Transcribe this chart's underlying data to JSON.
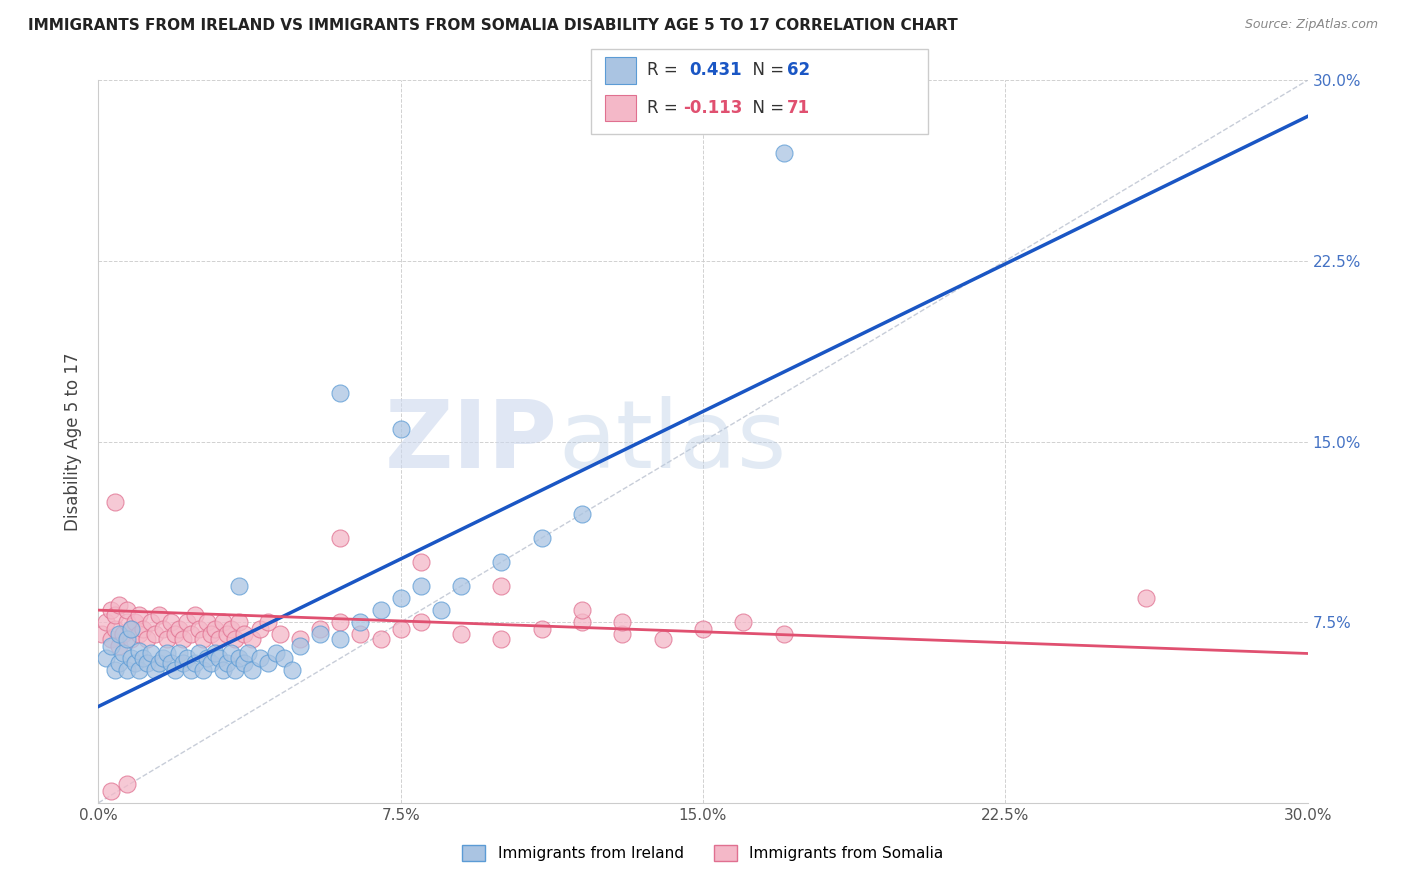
{
  "title": "IMMIGRANTS FROM IRELAND VS IMMIGRANTS FROM SOMALIA DISABILITY AGE 5 TO 17 CORRELATION CHART",
  "source": "Source: ZipAtlas.com",
  "ylabel": "Disability Age 5 to 17",
  "xlim": [
    0.0,
    0.3
  ],
  "ylim": [
    0.0,
    0.3
  ],
  "ireland_color": "#aac4e2",
  "ireland_edge": "#5b9bd5",
  "somalia_color": "#f4b8c8",
  "somalia_edge": "#e07090",
  "ireland_trend_color": "#1a56c4",
  "somalia_trend_color": "#e05070",
  "diagonal_color": "#b0b8c8",
  "R_ireland": 0.431,
  "N_ireland": 62,
  "R_somalia": -0.113,
  "N_somalia": 71,
  "legend_ireland_label": "Immigrants from Ireland",
  "legend_somalia_label": "Immigrants from Somalia",
  "watermark_zip": "ZIP",
  "watermark_atlas": "atlas",
  "ireland_x": [
    0.002,
    0.003,
    0.004,
    0.005,
    0.005,
    0.006,
    0.007,
    0.007,
    0.008,
    0.008,
    0.009,
    0.01,
    0.01,
    0.011,
    0.012,
    0.013,
    0.014,
    0.015,
    0.016,
    0.017,
    0.018,
    0.019,
    0.02,
    0.021,
    0.022,
    0.023,
    0.024,
    0.025,
    0.026,
    0.027,
    0.028,
    0.029,
    0.03,
    0.031,
    0.032,
    0.033,
    0.034,
    0.035,
    0.036,
    0.037,
    0.038,
    0.04,
    0.042,
    0.044,
    0.046,
    0.048,
    0.05,
    0.055,
    0.06,
    0.065,
    0.07,
    0.075,
    0.08,
    0.085,
    0.09,
    0.1,
    0.11,
    0.12,
    0.035,
    0.06,
    0.075,
    0.17
  ],
  "ireland_y": [
    0.06,
    0.065,
    0.055,
    0.07,
    0.058,
    0.062,
    0.055,
    0.068,
    0.06,
    0.072,
    0.058,
    0.063,
    0.055,
    0.06,
    0.058,
    0.062,
    0.055,
    0.058,
    0.06,
    0.062,
    0.058,
    0.055,
    0.062,
    0.058,
    0.06,
    0.055,
    0.058,
    0.062,
    0.055,
    0.06,
    0.058,
    0.062,
    0.06,
    0.055,
    0.058,
    0.062,
    0.055,
    0.06,
    0.058,
    0.062,
    0.055,
    0.06,
    0.058,
    0.062,
    0.06,
    0.055,
    0.065,
    0.07,
    0.068,
    0.075,
    0.08,
    0.085,
    0.09,
    0.08,
    0.09,
    0.1,
    0.11,
    0.12,
    0.09,
    0.17,
    0.155,
    0.27
  ],
  "somalia_x": [
    0.001,
    0.002,
    0.003,
    0.003,
    0.004,
    0.004,
    0.005,
    0.005,
    0.006,
    0.007,
    0.007,
    0.008,
    0.008,
    0.009,
    0.01,
    0.01,
    0.011,
    0.012,
    0.013,
    0.014,
    0.015,
    0.016,
    0.017,
    0.018,
    0.019,
    0.02,
    0.021,
    0.022,
    0.023,
    0.024,
    0.025,
    0.026,
    0.027,
    0.028,
    0.029,
    0.03,
    0.031,
    0.032,
    0.033,
    0.034,
    0.035,
    0.036,
    0.038,
    0.04,
    0.042,
    0.045,
    0.05,
    0.055,
    0.06,
    0.065,
    0.07,
    0.075,
    0.08,
    0.09,
    0.1,
    0.11,
    0.12,
    0.13,
    0.14,
    0.15,
    0.16,
    0.17,
    0.06,
    0.08,
    0.1,
    0.12,
    0.13,
    0.004,
    0.26,
    0.007,
    0.003
  ],
  "somalia_y": [
    0.07,
    0.075,
    0.068,
    0.08,
    0.072,
    0.078,
    0.065,
    0.082,
    0.07,
    0.075,
    0.08,
    0.068,
    0.072,
    0.075,
    0.07,
    0.078,
    0.072,
    0.068,
    0.075,
    0.07,
    0.078,
    0.072,
    0.068,
    0.075,
    0.07,
    0.072,
    0.068,
    0.075,
    0.07,
    0.078,
    0.072,
    0.068,
    0.075,
    0.07,
    0.072,
    0.068,
    0.075,
    0.07,
    0.072,
    0.068,
    0.075,
    0.07,
    0.068,
    0.072,
    0.075,
    0.07,
    0.068,
    0.072,
    0.075,
    0.07,
    0.068,
    0.072,
    0.075,
    0.07,
    0.068,
    0.072,
    0.075,
    0.07,
    0.068,
    0.072,
    0.075,
    0.07,
    0.11,
    0.1,
    0.09,
    0.08,
    0.075,
    0.125,
    0.085,
    0.008,
    0.005
  ],
  "ireland_trend_x0": 0.0,
  "ireland_trend_y0": 0.04,
  "ireland_trend_x1": 0.3,
  "ireland_trend_y1": 0.285,
  "somalia_trend_x0": 0.0,
  "somalia_trend_y0": 0.08,
  "somalia_trend_x1": 0.3,
  "somalia_trend_y1": 0.062
}
